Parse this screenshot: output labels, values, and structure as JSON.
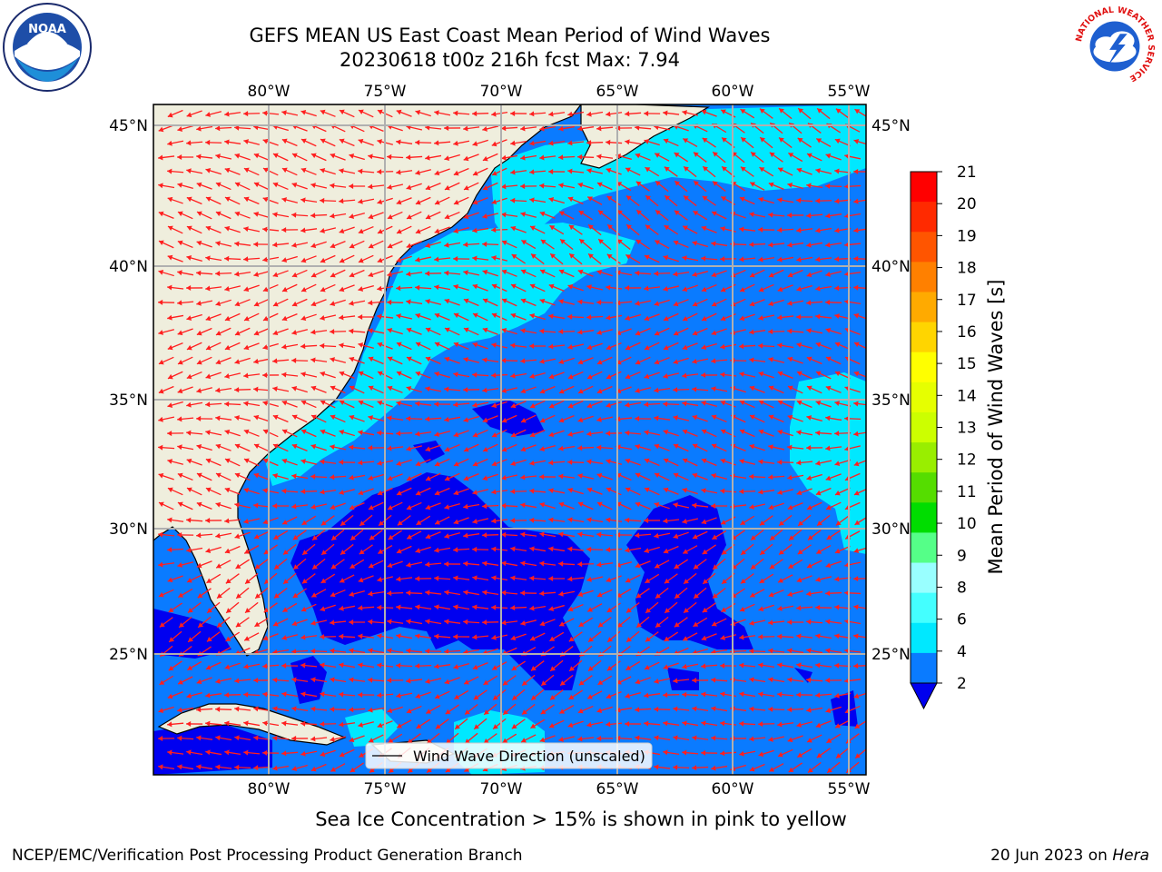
{
  "title": {
    "line1": "GEFS MEAN US East Coast Mean Period of Wind Waves",
    "line2": "20230618 t00z 216h fcst   Max: 7.94"
  },
  "logos": {
    "left": {
      "text": "NOAA",
      "icon": "noaa-logo-icon"
    },
    "right": {
      "ring_text": "NATIONAL WEATHER SERVICE",
      "icon": "nws-logo-icon"
    }
  },
  "map": {
    "lon_labels": [
      "80°W",
      "75°W",
      "70°W",
      "65°W",
      "60°W",
      "55°W"
    ],
    "lat_labels": [
      "45°N",
      "40°N",
      "35°N",
      "30°N",
      "25°N"
    ],
    "extent": {
      "lon_min": -85,
      "lon_max": -54.5,
      "lat_min": 20.5,
      "lat_max": 45.8
    },
    "colors": {
      "land": "#efeedd",
      "ocean_2_4": "#0a7bff",
      "ocean_lt2": "#0000f0",
      "ocean_4_6": "#00e8ff",
      "arrows": "#ff1f1f",
      "grid": "#b0b0b0"
    },
    "arrow_direction": "pointing west",
    "legend_label": "Wind Wave Direction (unscaled)"
  },
  "colorbar": {
    "title": "Mean Period of Wind Waves [s]",
    "ticks": [
      "21",
      "20",
      "19",
      "18",
      "17",
      "16",
      "15",
      "14",
      "13",
      "12",
      "11",
      "10",
      "9",
      "8",
      "6",
      "4",
      "2"
    ],
    "band_colors": [
      "#ff0000",
      "#ff2a00",
      "#ff5500",
      "#ff8000",
      "#ffaa00",
      "#ffd500",
      "#ffff00",
      "#e6ff00",
      "#ccff00",
      "#99ee00",
      "#55dd00",
      "#00dd00",
      "#55ff88",
      "#99ffff",
      "#44ffff",
      "#00e8ff",
      "#0a7bff"
    ],
    "extend_color": "#0000ee"
  },
  "sea_ice_note": "Sea Ice Concentration > 15% is shown in pink to yellow",
  "footer": {
    "left": "NCEP/EMC/Verification Post Processing Product Generation Branch",
    "right_date": "20 Jun 2023 on ",
    "right_host": "Hera"
  }
}
